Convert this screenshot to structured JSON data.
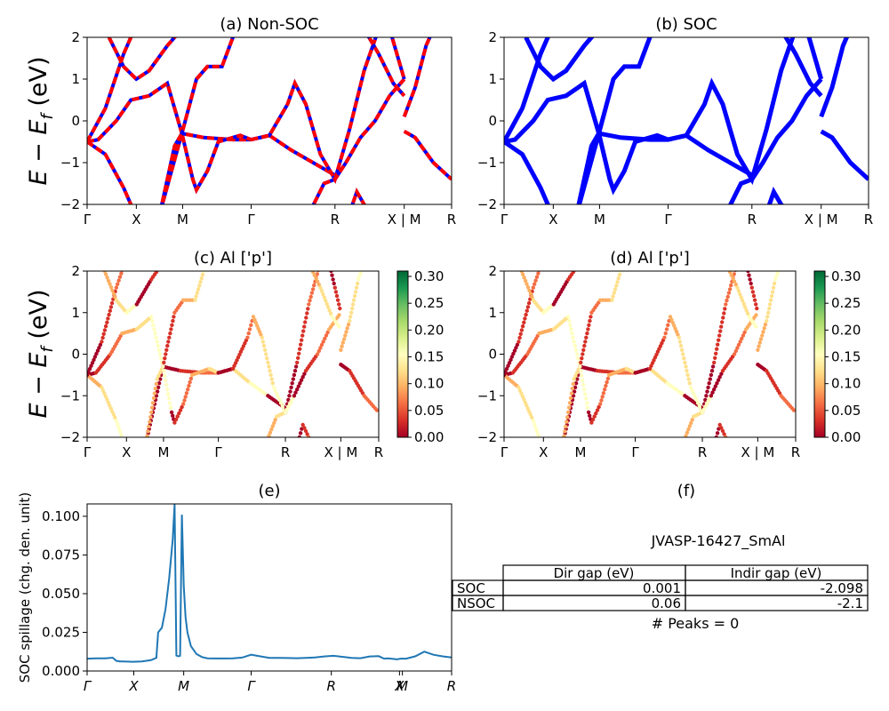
{
  "figure": {
    "ylabel_main": "E − E",
    "ylabel_sub": "f",
    "ylabel_unit": " (eV)",
    "kpath_labels": [
      "Γ",
      "X",
      "M",
      "Γ",
      "R",
      "X | M",
      "R"
    ],
    "spillage_labels": [
      "Γ",
      "X",
      "M",
      "Γ",
      "R",
      "X",
      "M",
      "R"
    ]
  },
  "chart_data": [
    {
      "id": "a",
      "type": "line",
      "title": "(a) Non-SOC",
      "ylim": [
        -2,
        2
      ],
      "yticks": [
        2,
        1,
        0,
        -1,
        -2
      ],
      "xticklabels": [
        "Γ",
        "X",
        "M",
        "Γ",
        "R",
        "X | M",
        "R"
      ],
      "colors": {
        "band": "#0000ff",
        "overlay": "#ff0000"
      },
      "note": "bands drawn in blue with red dashed overlay"
    },
    {
      "id": "b",
      "type": "line",
      "title": "(b) SOC",
      "ylim": [
        -2,
        2
      ],
      "yticks": [
        2,
        1,
        0,
        -1,
        -2
      ],
      "xticklabels": [
        "Γ",
        "X",
        "M",
        "Γ",
        "R",
        "X | M",
        "R"
      ],
      "colors": {
        "band": "#0000ff"
      }
    },
    {
      "id": "c",
      "type": "scatter",
      "title": "(c)  Al ['p']",
      "ylim": [
        -2,
        2
      ],
      "yticks": [
        2,
        1,
        0,
        -1,
        -2
      ],
      "xticklabels": [
        "Γ",
        "X",
        "M",
        "Γ",
        "R",
        "X | M",
        "R"
      ],
      "colorbar": {
        "ticks": [
          "0.30",
          "0.25",
          "0.20",
          "0.15",
          "0.10",
          "0.05",
          "0.00"
        ],
        "range": [
          0,
          0.31
        ],
        "colormap": "RdYlGn"
      }
    },
    {
      "id": "d",
      "type": "scatter",
      "title": "(d) Al ['p']",
      "ylim": [
        -2,
        2
      ],
      "yticks": [
        2,
        1,
        0,
        -1,
        -2
      ],
      "xticklabels": [
        "Γ",
        "X",
        "M",
        "Γ",
        "R",
        "X | M",
        "R"
      ],
      "colorbar": {
        "ticks": [
          "0.30",
          "0.25",
          "0.20",
          "0.15",
          "0.10",
          "0.05",
          "0.00"
        ],
        "range": [
          0,
          0.31
        ],
        "colormap": "RdYlGn"
      }
    },
    {
      "id": "e",
      "type": "line",
      "title": "(e)",
      "ylabel": "SOC spillage (chg. den. unit)",
      "ylim": [
        0,
        0.108
      ],
      "yticks": [
        "0.100",
        "0.075",
        "0.050",
        "0.025",
        "0.000"
      ],
      "xticklabels": [
        "Γ",
        "X",
        "M",
        "Γ",
        "R",
        "X",
        "M",
        "R"
      ],
      "x": [
        0,
        0.05,
        0.1,
        0.14,
        0.16,
        0.18,
        0.2,
        0.25,
        0.3,
        0.35,
        0.38,
        0.39,
        0.41,
        0.43,
        0.45,
        0.47,
        0.48,
        0.49,
        0.5,
        0.51,
        0.52,
        0.53,
        0.54,
        0.55,
        0.57,
        0.6,
        0.63,
        0.66,
        0.7,
        0.75,
        0.8,
        0.85,
        0.9,
        0.95,
        1.0,
        1.05,
        1.1,
        1.15,
        1.2,
        1.25,
        1.3,
        1.35,
        1.4,
        1.45,
        1.5,
        1.55,
        1.6,
        1.63,
        1.65,
        1.68,
        1.7,
        1.72,
        1.75,
        1.8,
        1.85,
        1.9,
        1.95,
        2.0
      ],
      "y": [
        0.008,
        0.0082,
        0.0082,
        0.0086,
        0.0066,
        0.0062,
        0.0062,
        0.006,
        0.0062,
        0.007,
        0.0085,
        0.025,
        0.028,
        0.04,
        0.06,
        0.085,
        0.108,
        0.01,
        0.0095,
        0.0098,
        0.101,
        0.055,
        0.035,
        0.025,
        0.016,
        0.011,
        0.009,
        0.0082,
        0.0081,
        0.0081,
        0.0082,
        0.0087,
        0.0105,
        0.0095,
        0.0085,
        0.0085,
        0.0084,
        0.0083,
        0.0085,
        0.0088,
        0.0094,
        0.0098,
        0.0092,
        0.0085,
        0.0083,
        0.0094,
        0.0096,
        0.008,
        0.0082,
        0.0078,
        0.0075,
        0.008,
        0.008,
        0.0095,
        0.0125,
        0.0105,
        0.0095,
        0.0088
      ],
      "colors": {
        "line": "#1f77b4"
      }
    },
    {
      "id": "f",
      "type": "table",
      "title": "(f)",
      "material": "JVASP-16427_SmAl",
      "columns": [
        "Dir gap (eV)",
        "Indir gap (eV)"
      ],
      "rows": [
        {
          "label": "SOC",
          "values": [
            "0.001",
            "-2.098"
          ]
        },
        {
          "label": "NSOC",
          "values": [
            "0.06",
            "-2.1"
          ]
        }
      ],
      "footer": "# Peaks = 0"
    }
  ]
}
